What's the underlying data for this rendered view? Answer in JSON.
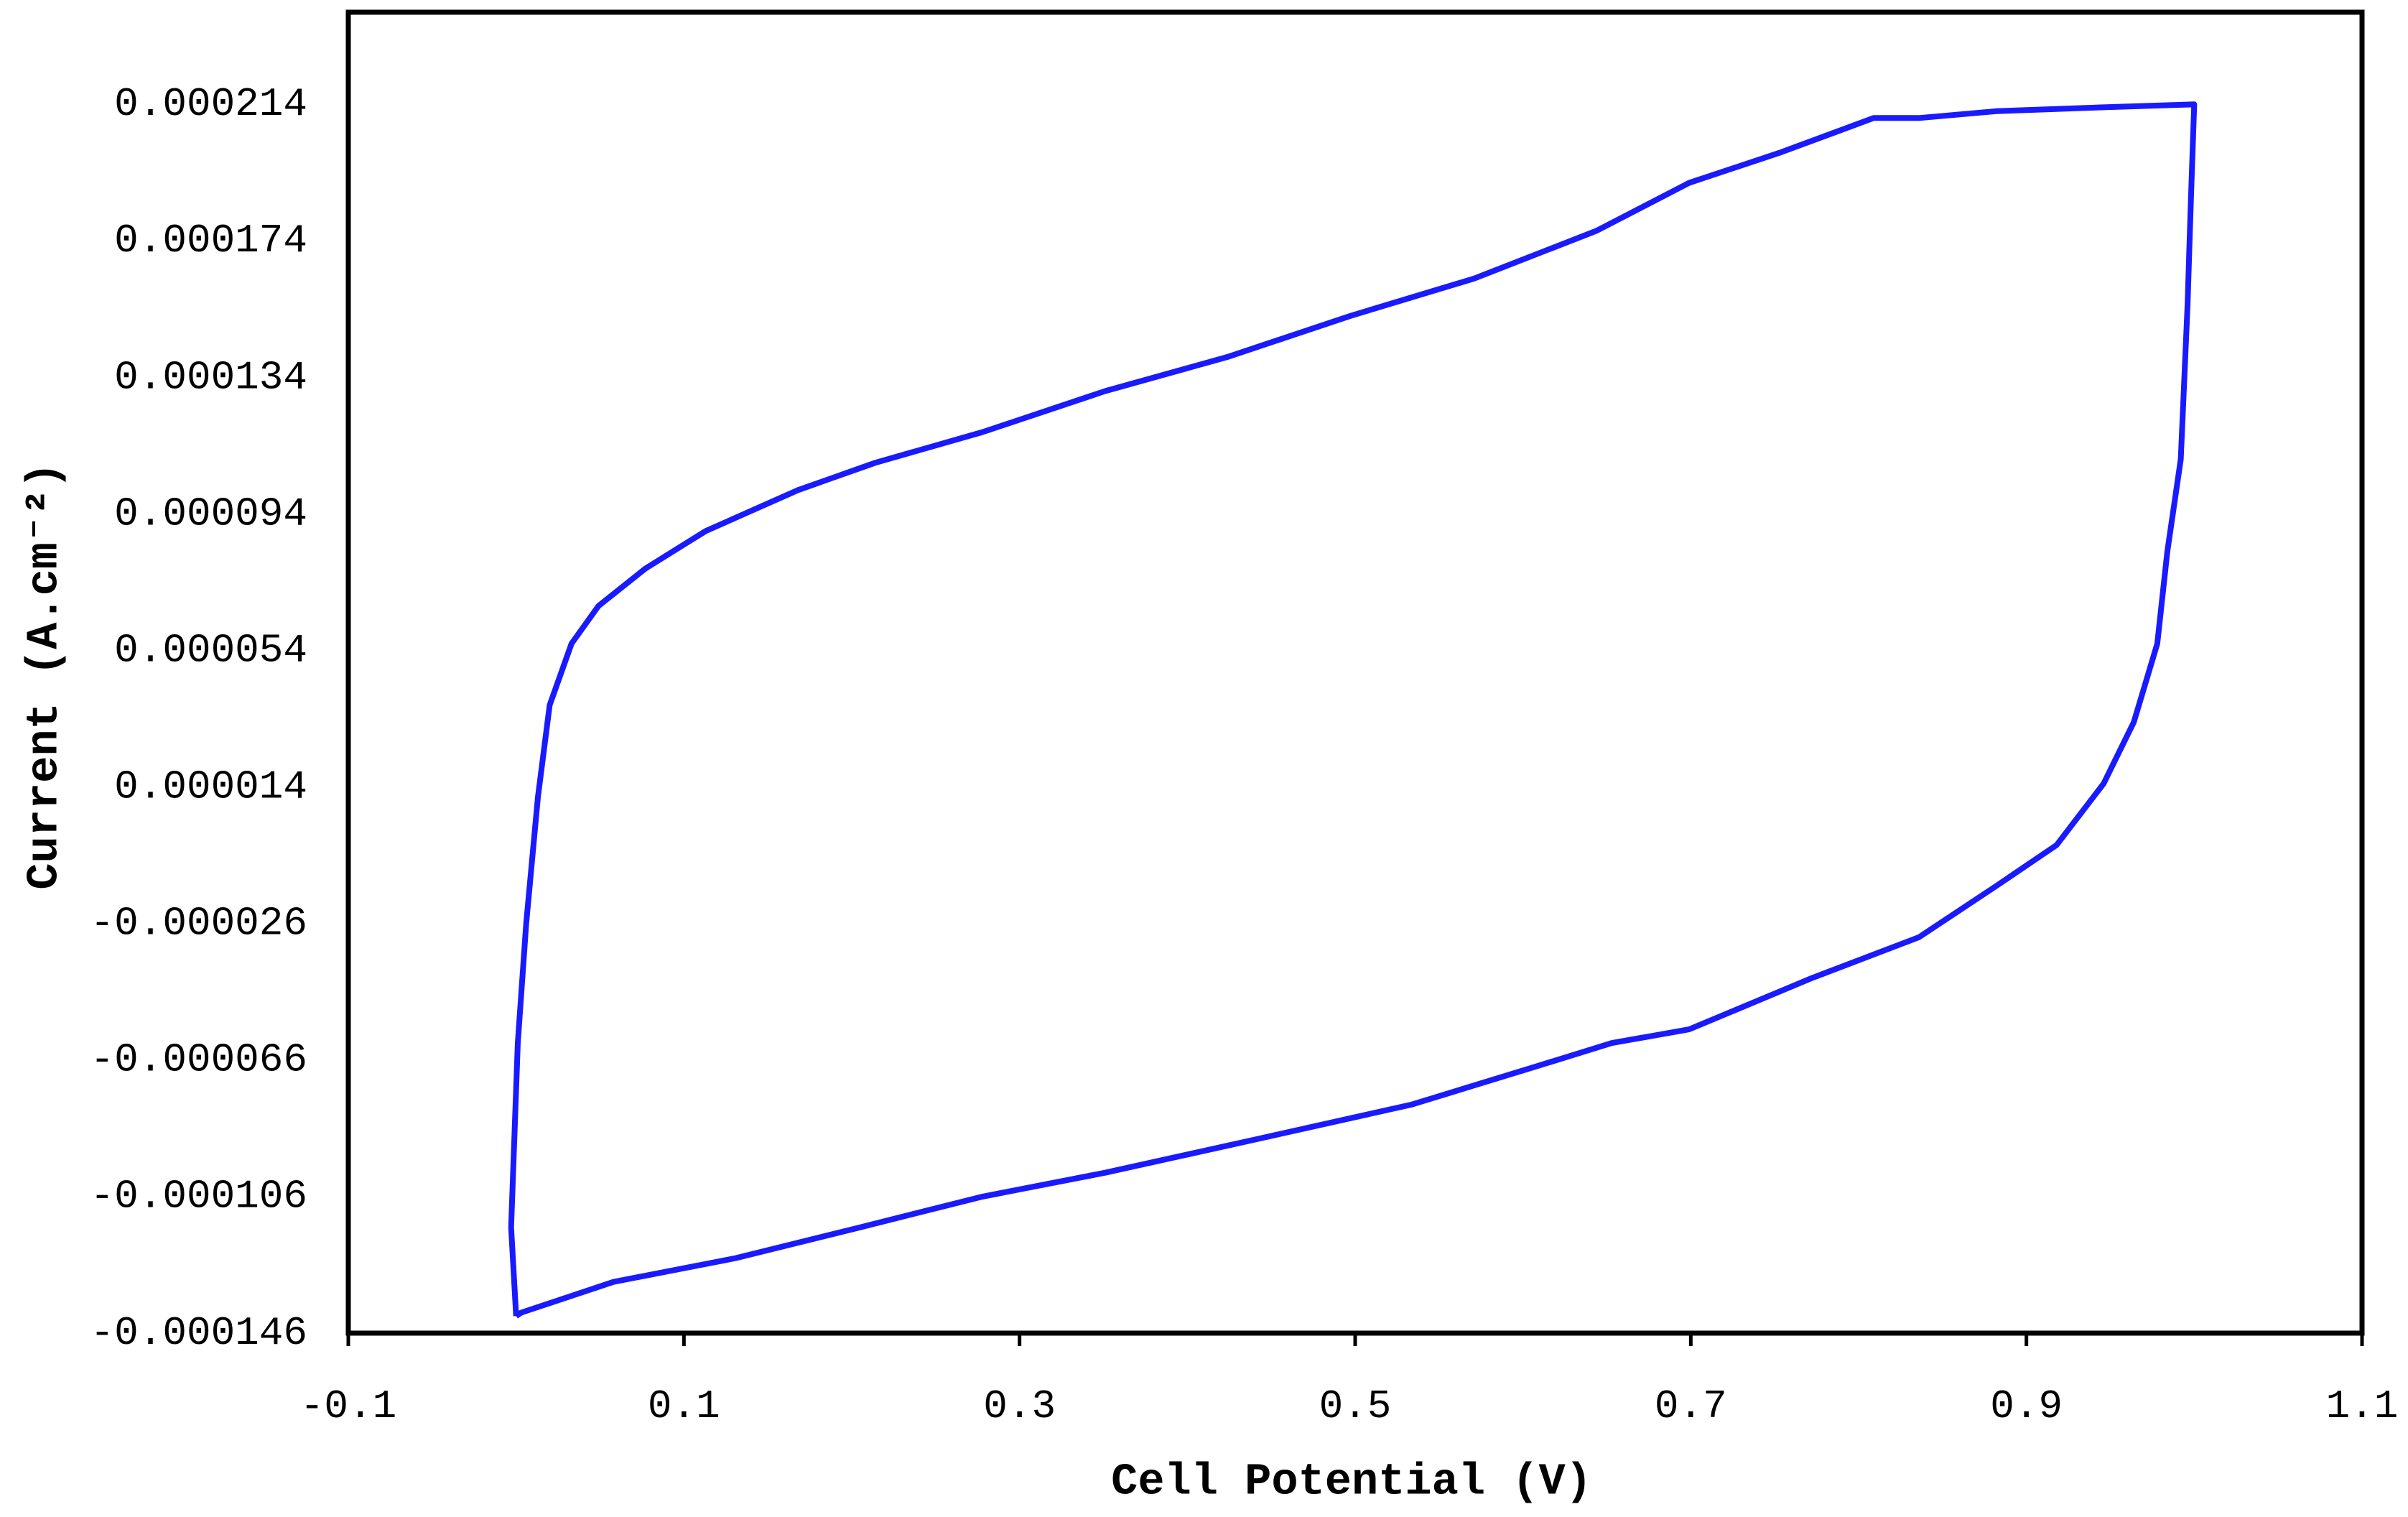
{
  "chart_data": {
    "type": "line",
    "x_label": "Cell Potential (V)",
    "y_label": "Current (A.cm⁻²)",
    "color": "#1a1aff",
    "xlim": [
      -0.1,
      1.1
    ],
    "xticks": [
      -0.1,
      0.1,
      0.3,
      0.5,
      0.7,
      0.9,
      1.1
    ],
    "ylim": [
      -0.000146,
      0.000241
    ],
    "yticks": [
      -0.000146,
      -0.000106,
      -6.6e-05,
      -2.6e-05,
      1.4e-05,
      5.4e-05,
      9.4e-05,
      0.000134,
      0.000174,
      0.000214
    ],
    "x": [
      0.0,
      -0.003,
      0.001,
      0.006,
      0.013,
      0.02,
      0.033,
      0.049,
      0.077,
      0.113,
      0.168,
      0.214,
      0.278,
      0.351,
      0.424,
      0.497,
      0.571,
      0.644,
      0.699,
      0.754,
      0.809,
      0.836,
      0.882,
      0.937,
      1.0,
      0.998,
      0.996,
      0.992,
      0.984,
      0.978,
      0.964,
      0.946,
      0.918,
      0.882,
      0.836,
      0.772,
      0.699,
      0.653,
      0.607,
      0.534,
      0.443,
      0.351,
      0.278,
      0.205,
      0.131,
      0.058,
      0.003,
      0.0
    ],
    "values": [
      -0.000141,
      -0.000115,
      -6.1e-05,
      -2.6e-05,
      1.1e-05,
      3.8e-05,
      5.6e-05,
      6.7e-05,
      7.8e-05,
      8.9e-05,
      0.000101,
      0.000109,
      0.000118,
      0.00013,
      0.00014,
      0.000152,
      0.000163,
      0.000177,
      0.000191,
      0.0002,
      0.00021,
      0.00021,
      0.000212,
      0.000213,
      0.000214,
      0.000186,
      0.000155,
      0.00011,
      8.3e-05,
      5.6e-05,
      3.3e-05,
      1.5e-05,
      -3e-06,
      -1.5e-05,
      -3e-05,
      -4.2e-05,
      -5.7e-05,
      -6.1e-05,
      -6.8e-05,
      -7.9e-05,
      -8.9e-05,
      -9.9e-05,
      -0.000106,
      -0.000115,
      -0.000124,
      -0.000131,
      -0.00014,
      -0.000141
    ]
  }
}
